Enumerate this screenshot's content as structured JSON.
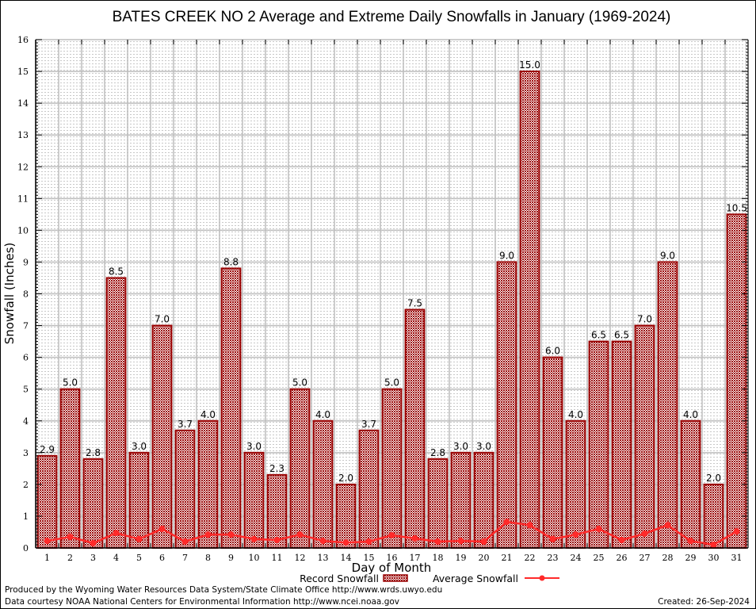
{
  "chart_data": {
    "type": "bar",
    "title": "BATES CREEK NO 2 Average and Extreme Daily Snowfalls in January (1969-2024)",
    "xlabel": "Day of Month",
    "ylabel": "Snowfall (Inches)",
    "ylim": [
      0,
      16
    ],
    "yticks": [
      0,
      1,
      2,
      3,
      4,
      5,
      6,
      7,
      8,
      9,
      10,
      11,
      12,
      13,
      14,
      15,
      16
    ],
    "grid": true,
    "legend_position": "bottom-center",
    "categories": [
      "1",
      "2",
      "3",
      "4",
      "5",
      "6",
      "7",
      "8",
      "9",
      "10",
      "11",
      "12",
      "13",
      "14",
      "15",
      "16",
      "17",
      "18",
      "19",
      "20",
      "21",
      "22",
      "23",
      "24",
      "25",
      "26",
      "27",
      "28",
      "29",
      "30",
      "31"
    ],
    "series": [
      {
        "name": "Record Snowfall",
        "type": "bar",
        "color": "#990000",
        "values": [
          2.9,
          5.0,
          2.8,
          8.5,
          3.0,
          7.0,
          3.7,
          4.0,
          8.8,
          3.0,
          2.3,
          5.0,
          4.0,
          2.0,
          3.7,
          5.0,
          7.5,
          2.8,
          3.0,
          3.0,
          9.0,
          15.0,
          6.0,
          4.0,
          6.5,
          6.5,
          7.0,
          9.0,
          4.0,
          2.0,
          10.5
        ],
        "labels": [
          "2.9",
          "5.0",
          "2.8",
          "8.5",
          "3.0",
          "7.0",
          "3.7",
          "4.0",
          "8.8",
          "3.0",
          "2.3",
          "5.0",
          "4.0",
          "2.0",
          "3.7",
          "5.0",
          "7.5",
          "2.8",
          "3.0",
          "3.0",
          "9.0",
          "15.0",
          "6.0",
          "4.0",
          "6.5",
          "6.5",
          "7.0",
          "9.0",
          "4.0",
          "2.0",
          "10.5"
        ]
      },
      {
        "name": "Average Snowfall",
        "type": "line",
        "color": "#ff2a2a",
        "values": [
          0.22,
          0.35,
          0.15,
          0.47,
          0.28,
          0.6,
          0.2,
          0.42,
          0.42,
          0.28,
          0.25,
          0.42,
          0.22,
          0.17,
          0.2,
          0.4,
          0.3,
          0.2,
          0.22,
          0.2,
          0.82,
          0.72,
          0.28,
          0.42,
          0.6,
          0.25,
          0.45,
          0.72,
          0.22,
          0.1,
          0.52
        ]
      }
    ]
  },
  "credits": {
    "produced_by": "Produced by the Wyoming Water Resources Data System/State Climate Office http://www.wrds.uwyo.edu",
    "data_courtesy": "Data courtesy NOAA National Centers for Environmental Information http://www.ncei.noaa.gov",
    "created": "Created:  26-Sep-2024"
  }
}
